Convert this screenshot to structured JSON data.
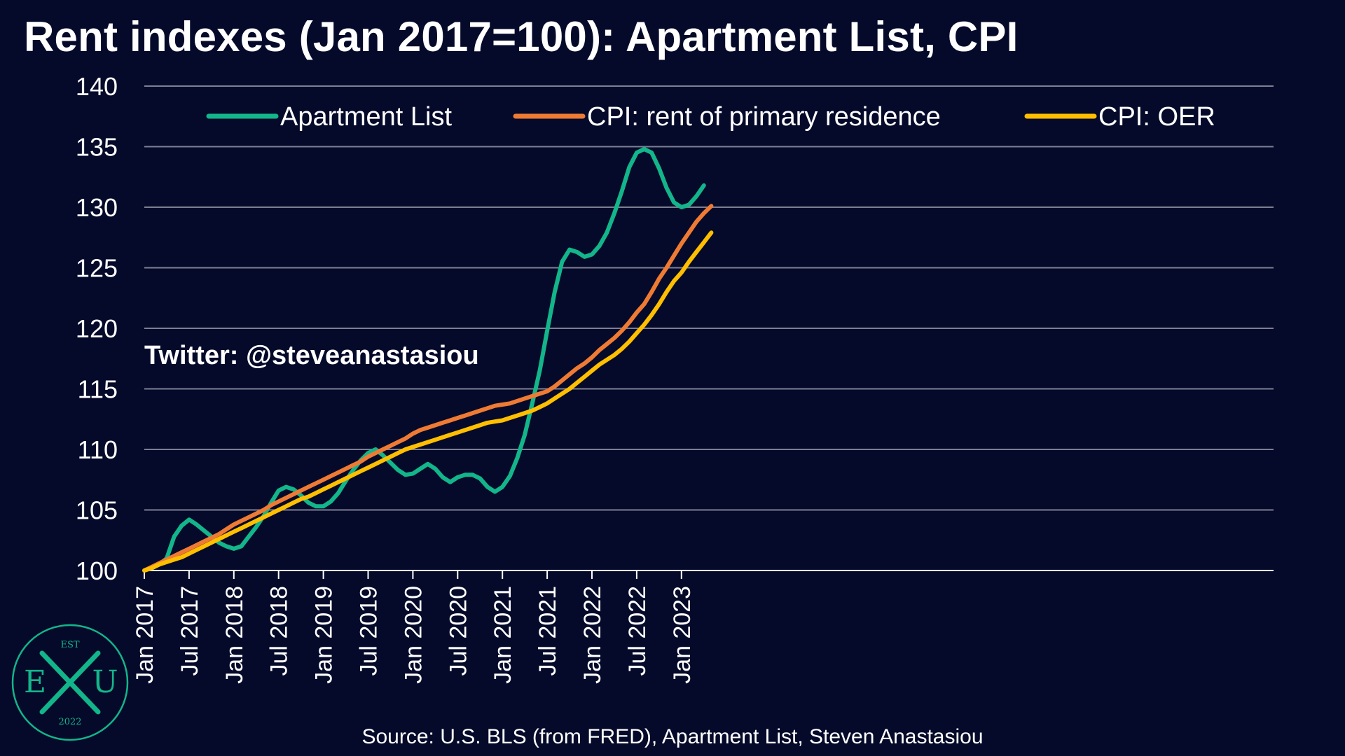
{
  "title": "Rent indexes (Jan 2017=100): Apartment List, CPI",
  "watermark": "Twitter: @steveanastasiou",
  "source": "Source: U.S. BLS (from FRED), Apartment List, Steven Anastasiou",
  "logo": {
    "top": "EST",
    "left": "E",
    "right": "U",
    "bottom": "2022"
  },
  "colors": {
    "background": "#050a2a",
    "grid": "#7d7f91",
    "apartment_list": "#13b58a",
    "cpi_rent": "#ef7a33",
    "cpi_oer": "#ffbf00"
  },
  "chart_data": {
    "type": "line",
    "title": "Rent indexes (Jan 2017=100): Apartment List, CPI",
    "xlabel": "",
    "ylabel": "",
    "ylim": [
      100,
      140
    ],
    "yticks": [
      100,
      105,
      110,
      115,
      120,
      125,
      130,
      135,
      140
    ],
    "xticks": [
      "Jan 2017",
      "Jul 2017",
      "Jan 2018",
      "Jul 2018",
      "Jan 2019",
      "Jul 2019",
      "Jan 2020",
      "Jul 2020",
      "Jan 2021",
      "Jul 2021",
      "Jan 2022",
      "Jul 2022",
      "Jan 2023"
    ],
    "x_start": "Jan 2017",
    "x_end": "Aug 2023",
    "grid": true,
    "legend_position": "top",
    "series": [
      {
        "name": "Apartment List",
        "color": "#13b58a",
        "values": [
          100,
          100.2,
          100.5,
          101,
          102.8,
          103.7,
          104.2,
          103.8,
          103.3,
          102.8,
          102.3,
          102,
          101.8,
          102,
          102.8,
          103.6,
          104.5,
          105.6,
          106.6,
          106.9,
          106.7,
          106.2,
          105.6,
          105.3,
          105.3,
          105.7,
          106.4,
          107.4,
          108.3,
          109.1,
          109.7,
          110,
          109.5,
          108.9,
          108.3,
          107.9,
          108,
          108.4,
          108.8,
          108.4,
          107.7,
          107.3,
          107.7,
          107.9,
          107.9,
          107.6,
          106.9,
          106.5,
          106.9,
          107.8,
          109.3,
          111.2,
          113.8,
          116.5,
          119.8,
          123,
          125.5,
          126.5,
          126.3,
          125.9,
          126.1,
          126.8,
          127.9,
          129.5,
          131.3,
          133.3,
          134.5,
          134.8,
          134.5,
          133.2,
          131.6,
          130.4,
          130,
          130.2,
          130.9,
          131.8
        ]
      },
      {
        "name": "CPI: rent of primary residence",
        "color": "#ef7a33",
        "values": [
          100,
          100.3,
          100.6,
          100.9,
          101.2,
          101.5,
          101.8,
          102.1,
          102.4,
          102.7,
          103,
          103.4,
          103.8,
          104.1,
          104.4,
          104.7,
          105,
          105.4,
          105.7,
          106,
          106.3,
          106.6,
          106.9,
          107.2,
          107.5,
          107.8,
          108.1,
          108.4,
          108.7,
          109,
          109.4,
          109.7,
          110,
          110.3,
          110.6,
          110.9,
          111.3,
          111.6,
          111.8,
          112,
          112.2,
          112.4,
          112.6,
          112.8,
          113,
          113.2,
          113.4,
          113.6,
          113.7,
          113.8,
          114,
          114.2,
          114.4,
          114.6,
          114.8,
          115.2,
          115.7,
          116.2,
          116.7,
          117.1,
          117.6,
          118.2,
          118.7,
          119.2,
          119.8,
          120.5,
          121.3,
          122,
          123,
          124.1,
          125,
          126,
          127,
          127.9,
          128.8,
          129.5,
          130.1
        ]
      },
      {
        "name": "CPI: OER",
        "color": "#ffbf00",
        "values": [
          100,
          100.2,
          100.5,
          100.7,
          100.9,
          101.1,
          101.4,
          101.7,
          102,
          102.3,
          102.6,
          102.9,
          103.2,
          103.5,
          103.8,
          104.1,
          104.4,
          104.7,
          105,
          105.3,
          105.6,
          105.9,
          106.1,
          106.4,
          106.7,
          107,
          107.3,
          107.6,
          107.9,
          108.2,
          108.5,
          108.8,
          109.1,
          109.4,
          109.7,
          110,
          110.2,
          110.4,
          110.6,
          110.8,
          111,
          111.2,
          111.4,
          111.6,
          111.8,
          112,
          112.2,
          112.3,
          112.4,
          112.6,
          112.8,
          113,
          113.2,
          113.5,
          113.8,
          114.2,
          114.6,
          115,
          115.5,
          116,
          116.5,
          117,
          117.4,
          117.8,
          118.3,
          118.9,
          119.6,
          120.3,
          121.1,
          122,
          123,
          123.9,
          124.6,
          125.5,
          126.3,
          127.1,
          127.9
        ]
      }
    ]
  }
}
